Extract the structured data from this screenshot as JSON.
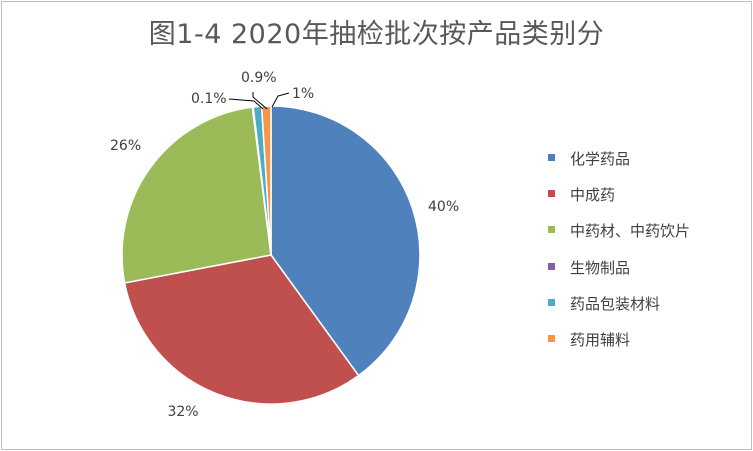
{
  "chart_data": {
    "type": "pie",
    "title": "图1-4  2020年抽检批次按产品类别分",
    "slices": [
      {
        "name": "化学药品",
        "value": 40,
        "label": "40%",
        "color": "#4f81bd"
      },
      {
        "name": "中成药",
        "value": 32,
        "label": "32%",
        "color": "#c0504d"
      },
      {
        "name": "中药材、中药饮片",
        "value": 26,
        "label": "26%",
        "color": "#9bbb59"
      },
      {
        "name": "生物制品",
        "value": 0.1,
        "label": "0.1%",
        "color": "#8064a2"
      },
      {
        "name": "药品包装材料",
        "value": 0.9,
        "label": "0.9%",
        "color": "#4bacc6"
      },
      {
        "name": "药用辅料",
        "value": 1,
        "label": "1%",
        "color": "#f79646"
      }
    ],
    "legend_position": "right",
    "start_angle_deg": 0,
    "direction": "clockwise"
  }
}
